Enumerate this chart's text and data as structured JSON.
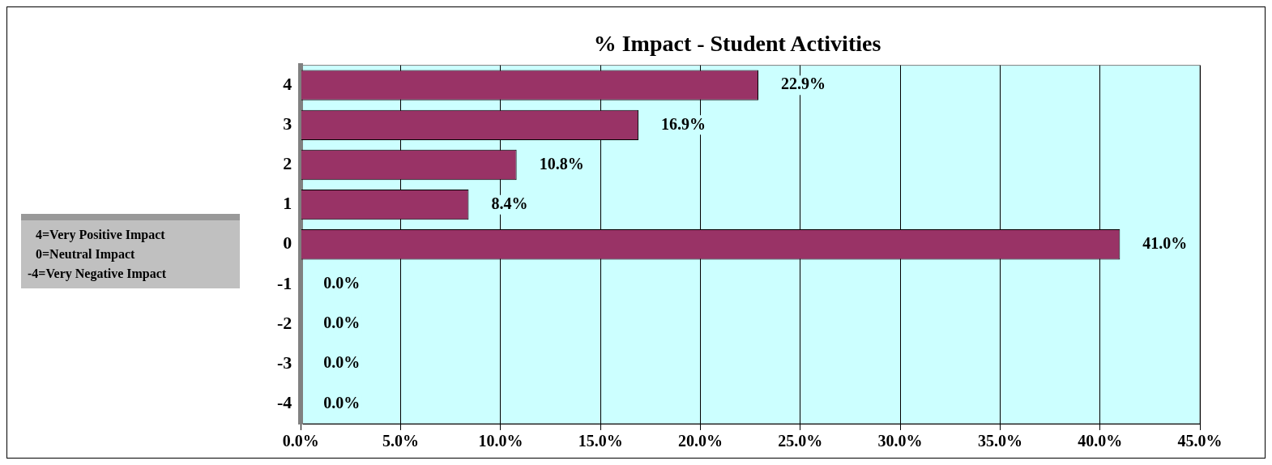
{
  "chart_data": {
    "type": "bar",
    "orientation": "horizontal",
    "title": "% Impact - Student Activities",
    "categories": [
      "4",
      "3",
      "2",
      "1",
      "0",
      "-1",
      "-2",
      "-3",
      "-4"
    ],
    "values": [
      22.9,
      16.9,
      10.8,
      8.4,
      41.0,
      0,
      0,
      0,
      0
    ],
    "value_labels": [
      "22.9%",
      "16.9%",
      "10.8%",
      "8.4%",
      "41.0%",
      "0.0%",
      "0.0%",
      "0.0%",
      "0.0%"
    ],
    "color": "#993366",
    "xlim": [
      0,
      45
    ],
    "xticks": [
      {
        "value": 0,
        "label": "0.0%"
      },
      {
        "value": 5,
        "label": "5.0%"
      },
      {
        "value": 10,
        "label": "10.0%"
      },
      {
        "value": 15,
        "label": "15.0%"
      },
      {
        "value": 20,
        "label": "20.0%"
      },
      {
        "value": 25,
        "label": "25.0%"
      },
      {
        "value": 30,
        "label": "30.0%"
      },
      {
        "value": 35,
        "label": "35.0%"
      },
      {
        "value": 40,
        "label": "40.0%"
      },
      {
        "value": 45,
        "label": "45.0%"
      }
    ],
    "grid": "x",
    "legend": false,
    "annotations": [
      "4=Very Positive Impact",
      "0=Neutral Impact",
      "-4=Very Negative Impact"
    ]
  }
}
